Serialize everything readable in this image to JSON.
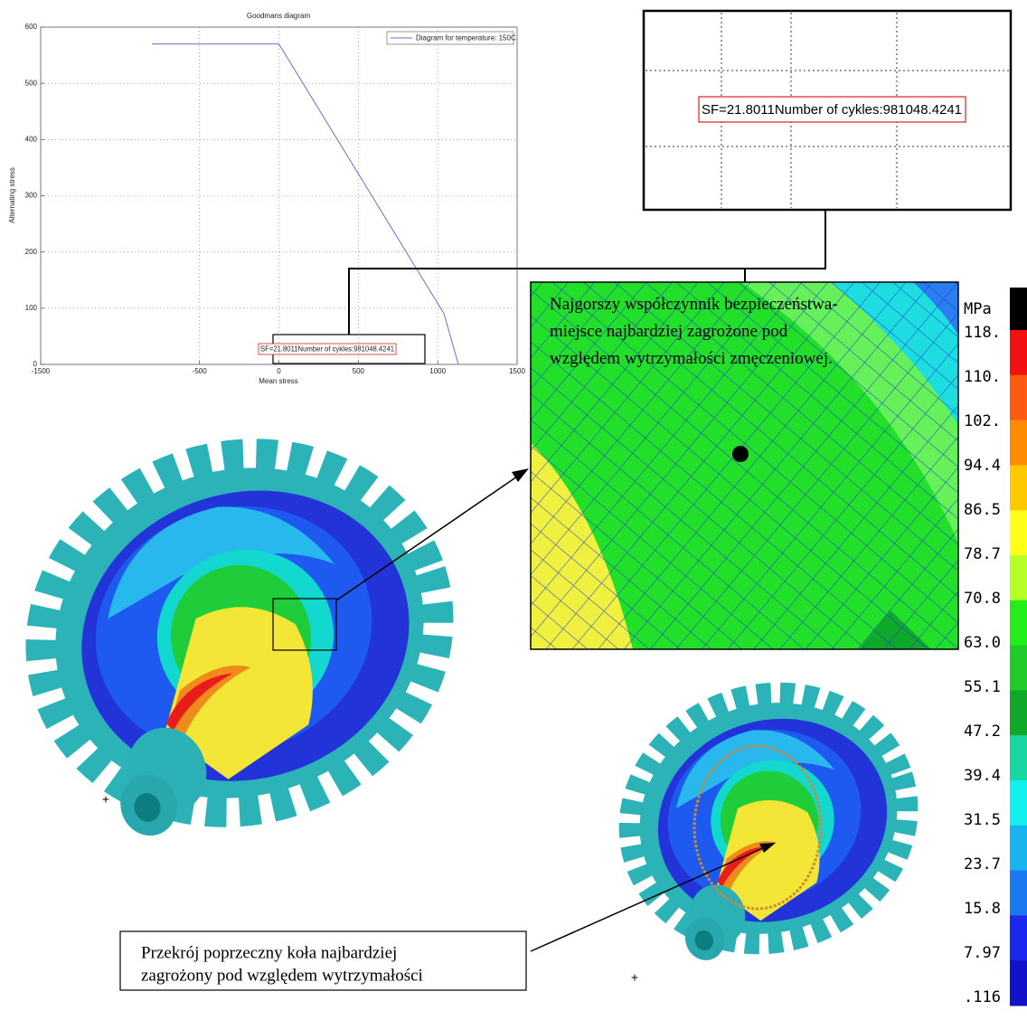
{
  "chart_data": {
    "type": "line",
    "title": "Goodmans diagram",
    "x_label": "Mean stress",
    "y_label": "Alternating stress",
    "x": [
      -800,
      0,
      1040,
      1130
    ],
    "series": [
      {
        "name": "Diagram for temperature: 150C",
        "color": "#6b6bd0",
        "values": [
          570,
          570,
          90,
          0
        ]
      }
    ],
    "xlim": [
      -1500,
      1500
    ],
    "xticks": [
      -1500,
      -500,
      0,
      500,
      1000,
      1500
    ],
    "ylim": [
      0,
      600
    ],
    "yticks": [
      0,
      100,
      200,
      300,
      400,
      500,
      600
    ],
    "grid": true,
    "legend": "upper right",
    "annotation": "SF=21.8011Number of cykles:981048.4241"
  },
  "zoom_note": {
    "lines": [
      "Najgorszy współczynnik bezpieczeństwa-",
      "miejsce najbardziej zagrożone pod",
      "względem wytrzymałości zmęczeniowej."
    ]
  },
  "section_note": {
    "lines": [
      "Przekrój poprzeczny koła najbardziej",
      "zagrożony pod względem wytrzymałości"
    ]
  },
  "colorbar": {
    "unit": "MPa",
    "labels": [
      "118.",
      "110.",
      "102.",
      "94.4",
      "86.5",
      "78.7",
      "70.8",
      "63.0",
      "55.1",
      "47.2",
      "39.4",
      "31.5",
      "23.7",
      "15.8",
      "7.97",
      ".116"
    ]
  }
}
